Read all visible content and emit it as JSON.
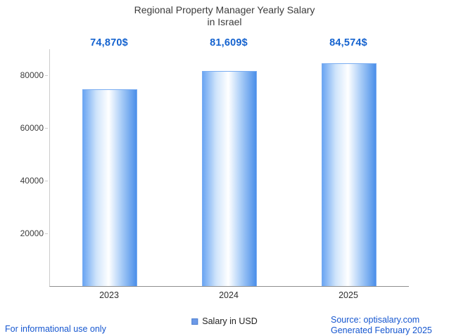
{
  "title": {
    "line1": "Regional Property Manager Yearly Salary",
    "line2": "in Israel"
  },
  "chart_data": {
    "type": "bar",
    "title": "Regional Property Manager Yearly Salary in Israel",
    "categories": [
      "2023",
      "2024",
      "2025"
    ],
    "values": [
      74870,
      81609,
      84574
    ],
    "value_labels": [
      "74,870$",
      "81,609$",
      "84,574$"
    ],
    "series_name": "Salary in USD",
    "xlabel": "",
    "ylabel": "",
    "ylim": [
      0,
      90000
    ],
    "yticks": [
      20000,
      40000,
      60000,
      80000
    ],
    "grid": false,
    "legend_position": "bottom-center",
    "bar_color_edge": "#4b8fe9",
    "bar_color_center": "#ffffff",
    "label_color": "#1563cf"
  },
  "legend": {
    "label": "Salary in USD"
  },
  "footer": {
    "disclaimer": "For informational use only",
    "source": "Source: optisalary.com",
    "generated": "Generated February 2025"
  },
  "colors": {
    "accent_blue": "#1563cf",
    "link_blue": "#1657d0",
    "axis_line": "#8f8f8f",
    "tick_text": "#3c3c3c"
  }
}
